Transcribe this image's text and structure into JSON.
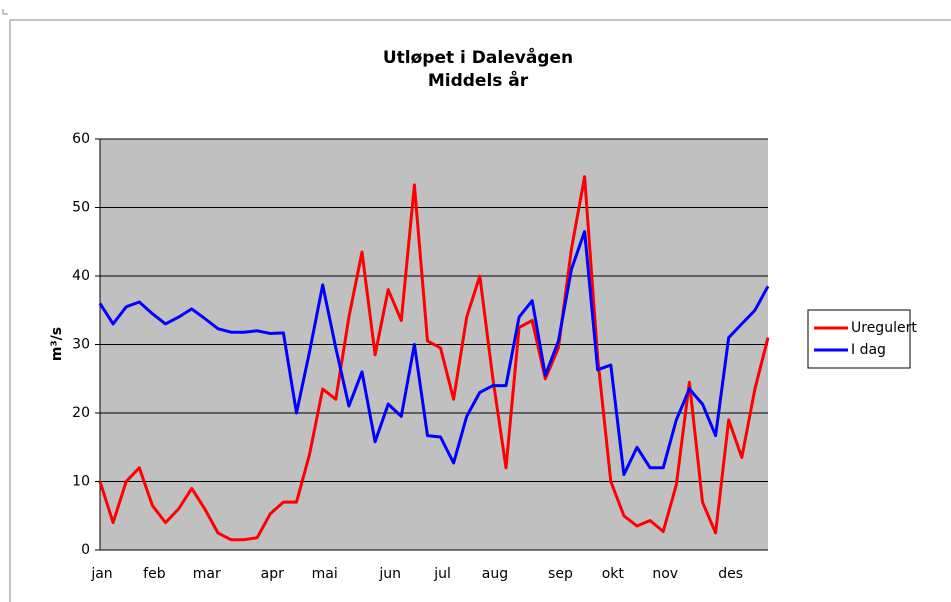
{
  "chart_data": {
    "type": "line",
    "title": "Utløpet i Dalevågen",
    "subtitle": "Middels år",
    "y_label": "m³/s",
    "categories": [
      "jan",
      null,
      null,
      null,
      "feb",
      null,
      null,
      null,
      "mar",
      null,
      null,
      null,
      null,
      "apr",
      null,
      null,
      null,
      "mai",
      null,
      null,
      null,
      null,
      "jun",
      null,
      null,
      null,
      "jul",
      null,
      null,
      null,
      "aug",
      null,
      null,
      null,
      null,
      "sep",
      null,
      null,
      null,
      "okt",
      null,
      null,
      null,
      "nov",
      null,
      null,
      null,
      null,
      "des",
      null,
      null,
      null
    ],
    "series": [
      {
        "name": "Uregulert",
        "color": "#ff0000",
        "values": [
          10,
          4,
          10,
          12,
          6.5,
          4,
          6,
          9,
          6,
          2.5,
          1.5,
          1.5,
          1.8,
          5.3,
          7,
          7,
          14,
          23.5,
          22,
          34,
          43.5,
          28.5,
          38,
          33.5,
          53.3,
          30.5,
          29.5,
          22,
          34,
          40,
          25,
          12,
          32.5,
          33.5,
          25,
          29.5,
          44,
          54.5,
          28,
          10,
          5,
          3.5,
          4.3,
          2.7,
          9.5,
          24.5,
          7,
          2.5,
          19,
          13.5,
          23.5,
          31
        ]
      },
      {
        "name": "I dag",
        "color": "#0000ff",
        "values": [
          36,
          33,
          35.5,
          36.2,
          34.5,
          33,
          34,
          35.2,
          33.8,
          32.3,
          31.8,
          31.8,
          32,
          31.6,
          31.7,
          20,
          29,
          38.7,
          29.5,
          21,
          26,
          15.8,
          21.3,
          19.5,
          30,
          16.7,
          16.5,
          12.7,
          19.5,
          23,
          24,
          24,
          34,
          36.4,
          25.5,
          30.5,
          41,
          46.5,
          26.3,
          27,
          11,
          15,
          12,
          12,
          19,
          23.5,
          21.3,
          16.7,
          31,
          33,
          35,
          38.5
        ]
      }
    ],
    "ylim": [
      0,
      60
    ],
    "yticks": [
      0,
      10,
      20,
      30,
      40,
      50,
      60
    ],
    "grid": true,
    "legend": "right",
    "plot_background": "#c0c0c0"
  }
}
